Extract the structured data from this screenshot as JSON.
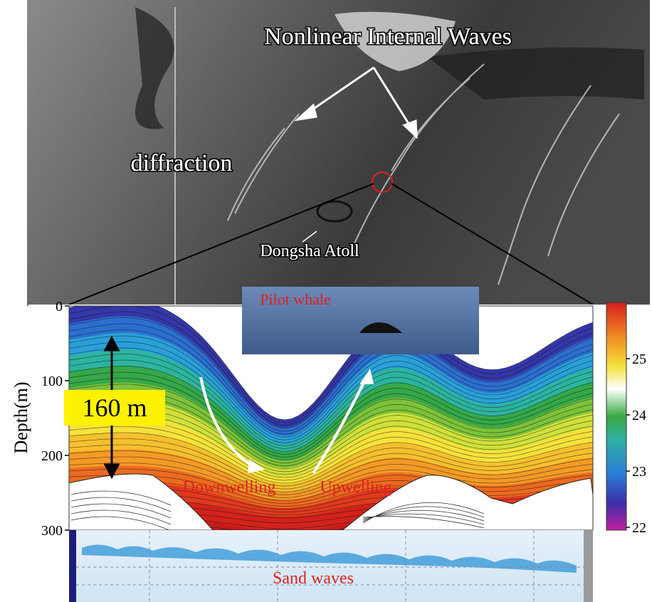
{
  "image_labels": {
    "title": "Nonlinear Internal Waves",
    "diffraction": "diffraction",
    "atoll": "Dongsha Atoll"
  },
  "section": {
    "whale": "Pilot whale",
    "scale_bar": "160 m",
    "downwelling": "Downwelling",
    "upwelling": "Upwelling",
    "sand_waves": "Sand waves"
  },
  "depth_axis": {
    "label": "Depth(m)",
    "lim": [
      0,
      300
    ],
    "ticks": [
      0,
      100,
      200,
      300
    ]
  },
  "colorbar": {
    "lim": [
      21.95,
      26
    ],
    "ticks": [
      22,
      23,
      24,
      25
    ]
  }
}
